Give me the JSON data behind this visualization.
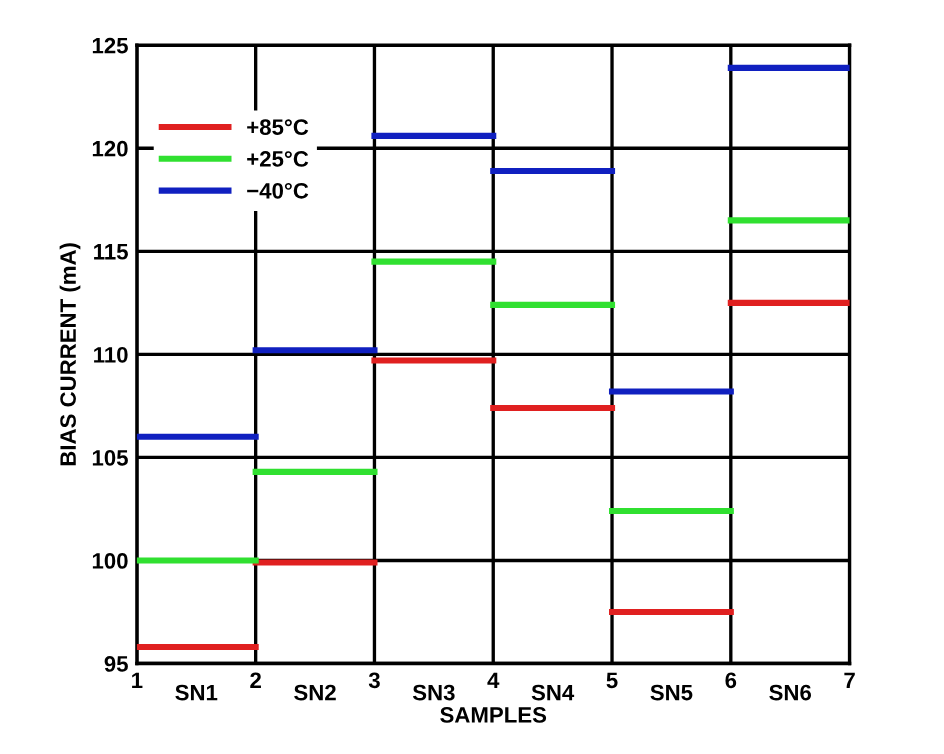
{
  "chart_data": {
    "type": "line",
    "xlabel": "SAMPLES",
    "ylabel": "BIAS CURRENT (mA)",
    "annotations": [
      "SN1",
      "SN2",
      "SN3",
      "SN4",
      "SN5",
      "SN6"
    ],
    "xlim": [
      1,
      7
    ],
    "xticks": [
      1,
      2,
      3,
      4,
      5,
      6,
      7
    ],
    "ylim": [
      95,
      125
    ],
    "yticks": [
      95,
      100,
      105,
      110,
      115,
      120,
      125
    ],
    "grid": true,
    "legend": "top left",
    "marker": "none",
    "line_style": "solid",
    "series": [
      {
        "name": "+85°C",
        "color": "#e02020",
        "x": [
          1,
          2,
          null,
          2,
          3,
          null,
          3,
          4,
          null,
          4,
          5,
          null,
          5,
          6,
          null,
          6,
          7
        ],
        "values": [
          95.8,
          95.8,
          null,
          99.9,
          99.9,
          null,
          109.7,
          109.7,
          null,
          107.4,
          107.4,
          null,
          97.5,
          97.5,
          null,
          112.5,
          112.5
        ]
      },
      {
        "name": "+25°C",
        "color": "#30e030",
        "x": [
          1,
          2,
          null,
          2,
          3,
          null,
          3,
          4,
          null,
          4,
          5,
          null,
          5,
          6,
          null,
          6,
          7
        ],
        "values": [
          100.0,
          100.0,
          null,
          104.3,
          104.3,
          null,
          114.5,
          114.5,
          null,
          112.4,
          112.4,
          null,
          102.4,
          102.4,
          null,
          116.5,
          116.5
        ]
      },
      {
        "name": "−40°C",
        "color": "#1020c0",
        "x": [
          1,
          2,
          null,
          2,
          3,
          null,
          3,
          4,
          null,
          4,
          5,
          null,
          5,
          6,
          null,
          6,
          7
        ],
        "values": [
          106.0,
          106.0,
          null,
          110.2,
          110.2,
          null,
          120.6,
          120.6,
          null,
          118.9,
          118.9,
          null,
          108.2,
          108.2,
          null,
          123.9,
          123.9
        ]
      }
    ]
  }
}
